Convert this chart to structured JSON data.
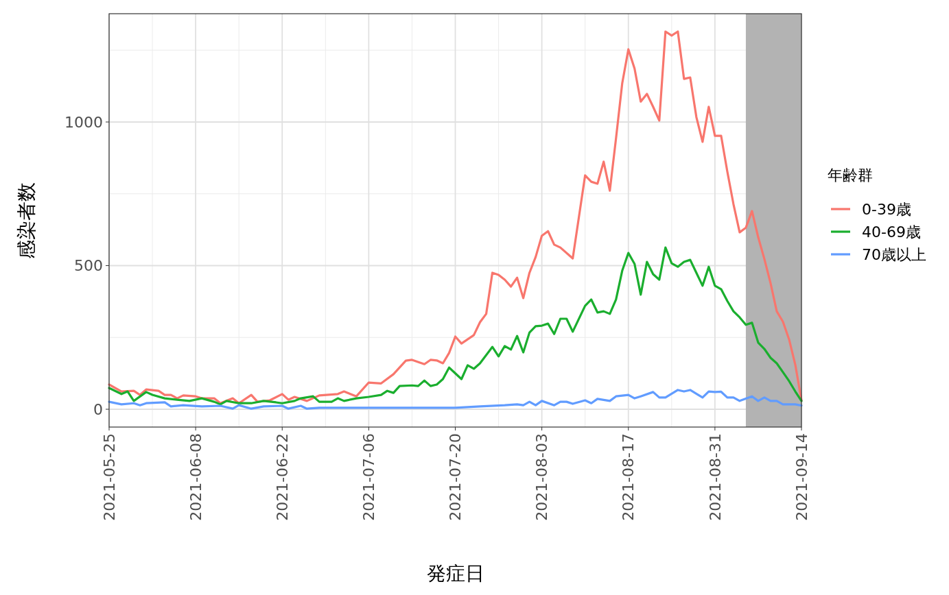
{
  "chart_data": {
    "type": "line",
    "xlabel": "発症日",
    "ylabel": "感染者数",
    "legend_title": "年齢群",
    "legend": "right",
    "grid": true,
    "line_style": "solid",
    "marker": "none",
    "xlim": [
      "2021-05-25",
      "2021-09-14"
    ],
    "xticks": [
      {
        "value": "2021-05-25",
        "label": "2021-05-25"
      },
      {
        "value": "2021-06-08",
        "label": "2021-06-08"
      },
      {
        "value": "2021-06-22",
        "label": "2021-06-22"
      },
      {
        "value": "2021-07-06",
        "label": "2021-07-06"
      },
      {
        "value": "2021-07-20",
        "label": "2021-07-20"
      },
      {
        "value": "2021-08-03",
        "label": "2021-08-03"
      },
      {
        "value": "2021-08-17",
        "label": "2021-08-17"
      },
      {
        "value": "2021-08-31",
        "label": "2021-08-31"
      },
      {
        "value": "2021-09-14",
        "label": "2021-09-14"
      }
    ],
    "ylim": [
      -62,
      1377
    ],
    "yticks": [
      0,
      500,
      1000
    ],
    "bands": [
      {
        "axis": "x",
        "from": "2021-09-05",
        "to": "2021-09-14",
        "color": "#b3b3b3"
      }
    ],
    "series": [
      {
        "name": "0-39歳",
        "color": "#f8766d",
        "x": [
          "2021-05-25",
          "2021-05-27",
          "2021-05-29",
          "2021-05-30",
          "2021-05-31",
          "2021-06-02",
          "2021-06-03",
          "2021-06-04",
          "2021-06-05",
          "2021-06-06",
          "2021-06-08",
          "2021-06-09",
          "2021-06-11",
          "2021-06-12",
          "2021-06-14",
          "2021-06-15",
          "2021-06-17",
          "2021-06-18",
          "2021-06-20",
          "2021-06-22",
          "2021-06-23",
          "2021-06-24",
          "2021-06-26",
          "2021-06-28",
          "2021-07-01",
          "2021-07-02",
          "2021-07-04",
          "2021-07-06",
          "2021-07-08",
          "2021-07-10",
          "2021-07-12",
          "2021-07-13",
          "2021-07-15",
          "2021-07-16",
          "2021-07-17",
          "2021-07-18",
          "2021-07-19",
          "2021-07-20",
          "2021-07-21",
          "2021-07-23",
          "2021-07-24",
          "2021-07-25",
          "2021-07-26",
          "2021-07-27",
          "2021-07-28",
          "2021-07-29",
          "2021-07-30",
          "2021-07-31",
          "2021-08-01",
          "2021-08-02",
          "2021-08-03",
          "2021-08-04",
          "2021-08-05",
          "2021-08-06",
          "2021-08-08",
          "2021-08-10",
          "2021-08-11",
          "2021-08-12",
          "2021-08-13",
          "2021-08-14",
          "2021-08-15",
          "2021-08-16",
          "2021-08-17",
          "2021-08-18",
          "2021-08-19",
          "2021-08-20",
          "2021-08-21",
          "2021-08-22",
          "2021-08-23",
          "2021-08-24",
          "2021-08-25",
          "2021-08-26",
          "2021-08-27",
          "2021-08-28",
          "2021-08-29",
          "2021-08-30",
          "2021-08-31",
          "2021-09-01",
          "2021-09-02",
          "2021-09-03",
          "2021-09-04",
          "2021-09-05",
          "2021-09-06",
          "2021-09-07",
          "2021-09-08",
          "2021-09-09",
          "2021-09-10",
          "2021-09-11",
          "2021-09-12",
          "2021-09-13",
          "2021-09-14"
        ],
        "values": [
          86,
          62,
          64,
          50,
          69,
          64,
          50,
          50,
          38,
          48,
          45,
          38,
          38,
          21,
          38,
          21,
          50,
          26,
          31,
          53,
          33,
          43,
          29,
          48,
          53,
          62,
          45,
          93,
          90,
          122,
          169,
          172,
          157,
          172,
          170,
          160,
          196,
          253,
          229,
          258,
          303,
          332,
          475,
          468,
          451,
          427,
          458,
          387,
          475,
          530,
          604,
          620,
          573,
          563,
          525,
          814,
          792,
          785,
          862,
          761,
          943,
          1134,
          1253,
          1186,
          1071,
          1098,
          1053,
          1005,
          1315,
          1301,
          1315,
          1150,
          1155,
          1017,
          931,
          1053,
          952,
          952,
          828,
          714,
          616,
          632,
          690,
          599,
          523,
          439,
          341,
          305,
          243,
          155,
          31
        ]
      },
      {
        "name": "40-69歳",
        "color": "#1aae2e",
        "x": [
          "2021-05-25",
          "2021-05-27",
          "2021-05-28",
          "2021-05-29",
          "2021-05-31",
          "2021-06-01",
          "2021-06-03",
          "2021-06-05",
          "2021-06-07",
          "2021-06-09",
          "2021-06-11",
          "2021-06-12",
          "2021-06-13",
          "2021-06-15",
          "2021-06-17",
          "2021-06-19",
          "2021-06-21",
          "2021-06-22",
          "2021-06-24",
          "2021-06-25",
          "2021-06-27",
          "2021-06-28",
          "2021-06-30",
          "2021-07-01",
          "2021-07-02",
          "2021-07-04",
          "2021-07-06",
          "2021-07-08",
          "2021-07-09",
          "2021-07-10",
          "2021-07-11",
          "2021-07-13",
          "2021-07-14",
          "2021-07-15",
          "2021-07-16",
          "2021-07-17",
          "2021-07-18",
          "2021-07-19",
          "2021-07-21",
          "2021-07-22",
          "2021-07-23",
          "2021-07-24",
          "2021-07-26",
          "2021-07-27",
          "2021-07-28",
          "2021-07-29",
          "2021-07-30",
          "2021-07-31",
          "2021-08-01",
          "2021-08-02",
          "2021-08-03",
          "2021-08-04",
          "2021-08-05",
          "2021-08-06",
          "2021-08-07",
          "2021-08-08",
          "2021-08-10",
          "2021-08-11",
          "2021-08-12",
          "2021-08-13",
          "2021-08-14",
          "2021-08-15",
          "2021-08-16",
          "2021-08-17",
          "2021-08-18",
          "2021-08-19",
          "2021-08-20",
          "2021-08-21",
          "2021-08-22",
          "2021-08-23",
          "2021-08-24",
          "2021-08-25",
          "2021-08-26",
          "2021-08-27",
          "2021-08-28",
          "2021-08-29",
          "2021-08-30",
          "2021-08-31",
          "2021-09-01",
          "2021-09-02",
          "2021-09-03",
          "2021-09-04",
          "2021-09-05",
          "2021-09-06",
          "2021-09-07",
          "2021-09-08",
          "2021-09-09",
          "2021-09-10",
          "2021-09-11",
          "2021-09-12",
          "2021-09-13",
          "2021-09-14"
        ],
        "values": [
          74,
          53,
          62,
          29,
          60,
          50,
          38,
          33,
          29,
          38,
          26,
          17,
          29,
          21,
          21,
          29,
          24,
          21,
          29,
          38,
          45,
          26,
          26,
          38,
          29,
          38,
          43,
          50,
          64,
          57,
          81,
          83,
          81,
          100,
          81,
          86,
          105,
          145,
          105,
          153,
          141,
          160,
          217,
          184,
          220,
          208,
          255,
          198,
          267,
          289,
          291,
          298,
          262,
          315,
          315,
          270,
          360,
          382,
          337,
          341,
          332,
          382,
          482,
          544,
          506,
          399,
          513,
          470,
          451,
          563,
          508,
          496,
          513,
          520,
          475,
          430,
          496,
          430,
          418,
          377,
          341,
          320,
          294,
          301,
          232,
          210,
          179,
          160,
          129,
          98,
          62,
          29
        ]
      },
      {
        "name": "70歳以上",
        "color": "#619cff",
        "x": [
          "2021-05-25",
          "2021-05-27",
          "2021-05-29",
          "2021-05-30",
          "2021-05-31",
          "2021-06-03",
          "2021-06-04",
          "2021-06-06",
          "2021-06-09",
          "2021-06-12",
          "2021-06-14",
          "2021-06-15",
          "2021-06-17",
          "2021-06-19",
          "2021-06-22",
          "2021-06-23",
          "2021-06-25",
          "2021-06-26",
          "2021-06-28",
          "2021-07-04",
          "2021-07-14",
          "2021-07-20",
          "2021-07-24",
          "2021-07-28",
          "2021-07-30",
          "2021-07-31",
          "2021-08-01",
          "2021-08-02",
          "2021-08-03",
          "2021-08-05",
          "2021-08-06",
          "2021-08-07",
          "2021-08-08",
          "2021-08-10",
          "2021-08-11",
          "2021-08-12",
          "2021-08-14",
          "2021-08-15",
          "2021-08-17",
          "2021-08-18",
          "2021-08-19",
          "2021-08-21",
          "2021-08-22",
          "2021-08-23",
          "2021-08-25",
          "2021-08-26",
          "2021-08-27",
          "2021-08-29",
          "2021-08-30",
          "2021-08-31",
          "2021-09-01",
          "2021-09-02",
          "2021-09-03",
          "2021-09-04",
          "2021-09-06",
          "2021-09-07",
          "2021-09-08",
          "2021-09-09",
          "2021-09-10",
          "2021-09-11",
          "2021-09-13",
          "2021-09-14"
        ],
        "values": [
          26,
          17,
          21,
          14,
          21,
          24,
          10,
          14,
          10,
          12,
          2,
          14,
          2,
          10,
          12,
          2,
          12,
          2,
          5,
          5,
          5,
          5,
          10,
          14,
          17,
          14,
          26,
          14,
          29,
          14,
          26,
          26,
          19,
          31,
          21,
          36,
          29,
          45,
          50,
          38,
          45,
          60,
          41,
          41,
          67,
          62,
          67,
          41,
          62,
          60,
          61,
          41,
          41,
          29,
          45,
          29,
          41,
          29,
          29,
          17,
          17,
          13
        ]
      }
    ]
  }
}
